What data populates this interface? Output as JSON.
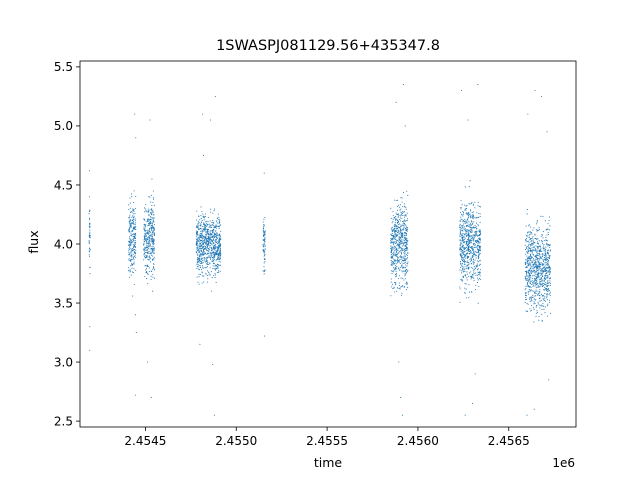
{
  "chart_data": {
    "type": "scatter",
    "title": "1SWASPJ081129.56+435347.8",
    "xlabel": "time",
    "ylabel": "flux",
    "x_offset_label": "1e6",
    "xlim": [
      2454140,
      2456870
    ],
    "ylim": [
      2.45,
      5.55
    ],
    "x_ticks": [
      2.4545,
      2.455,
      2.4555,
      2.456,
      2.4565
    ],
    "x_tick_labels": [
      "2.4545",
      "2.4550",
      "2.4555",
      "2.4560",
      "2.4565"
    ],
    "y_ticks": [
      2.5,
      3.0,
      3.5,
      4.0,
      4.5,
      5.0,
      5.5
    ],
    "y_tick_labels": [
      "2.5",
      "3.0",
      "3.5",
      "4.0",
      "4.5",
      "5.0",
      "5.5"
    ],
    "grid": false,
    "color": "#1f77b4",
    "series": [
      {
        "points": [
          [
            2454192,
            4.62
          ],
          [
            2454192,
            4.4
          ],
          [
            2454193,
            3.1
          ],
          [
            2454194,
            3.3
          ],
          [
            2454195,
            3.75
          ],
          [
            2454441,
            5.1
          ],
          [
            2454438,
            4.45
          ],
          [
            2454445,
            3.4
          ],
          [
            2454450,
            3.25
          ],
          [
            2454447,
            4.9
          ],
          [
            2454446,
            2.72
          ],
          [
            2454525,
            5.05
          ],
          [
            2454536,
            4.55
          ],
          [
            2454532,
            2.7
          ],
          [
            2454512,
            3.0
          ],
          [
            2454540,
            3.6
          ],
          [
            2454815,
            5.1
          ],
          [
            2454858,
            5.05
          ],
          [
            2454885,
            5.25
          ],
          [
            2454880,
            2.55
          ],
          [
            2454820,
            4.75
          ],
          [
            2454870,
            2.98
          ],
          [
            2454800,
            3.15
          ],
          [
            2455154,
            4.6
          ],
          [
            2455156,
            3.22
          ],
          [
            2455158,
            3.85
          ],
          [
            2455880,
            5.2
          ],
          [
            2455920,
            5.35
          ],
          [
            2455915,
            2.55
          ],
          [
            2455905,
            2.7
          ],
          [
            2455895,
            3.0
          ],
          [
            2455930,
            5.0
          ],
          [
            2456240,
            5.3
          ],
          [
            2456260,
            2.55
          ],
          [
            2456300,
            2.65
          ],
          [
            2456330,
            5.35
          ],
          [
            2456315,
            2.9
          ],
          [
            2456275,
            5.05
          ],
          [
            2456600,
            2.55
          ],
          [
            2456640,
            2.6
          ],
          [
            2456645,
            5.3
          ],
          [
            2456680,
            5.25
          ],
          [
            2456710,
            4.95
          ],
          [
            2456605,
            5.1
          ],
          [
            2456720,
            2.85
          ]
        ]
      }
    ],
    "segments": [
      {
        "x_start": 2454190,
        "x_end": 2454196,
        "center": 4.05,
        "spread": 0.3
      },
      {
        "x_start": 2454408,
        "x_end": 2454448,
        "center": 4.05,
        "spread": 0.32
      },
      {
        "x_start": 2454490,
        "x_end": 2454550,
        "center": 4.05,
        "spread": 0.3
      },
      {
        "x_start": 2454780,
        "x_end": 2454915,
        "center": 4.0,
        "spread": 0.25
      },
      {
        "x_start": 2455148,
        "x_end": 2455160,
        "center": 4.0,
        "spread": 0.22
      },
      {
        "x_start": 2455850,
        "x_end": 2455945,
        "center": 4.0,
        "spread": 0.34
      },
      {
        "x_start": 2456230,
        "x_end": 2456345,
        "center": 4.0,
        "spread": 0.34
      },
      {
        "x_start": 2456590,
        "x_end": 2456730,
        "center": 3.8,
        "spread": 0.34
      }
    ]
  }
}
